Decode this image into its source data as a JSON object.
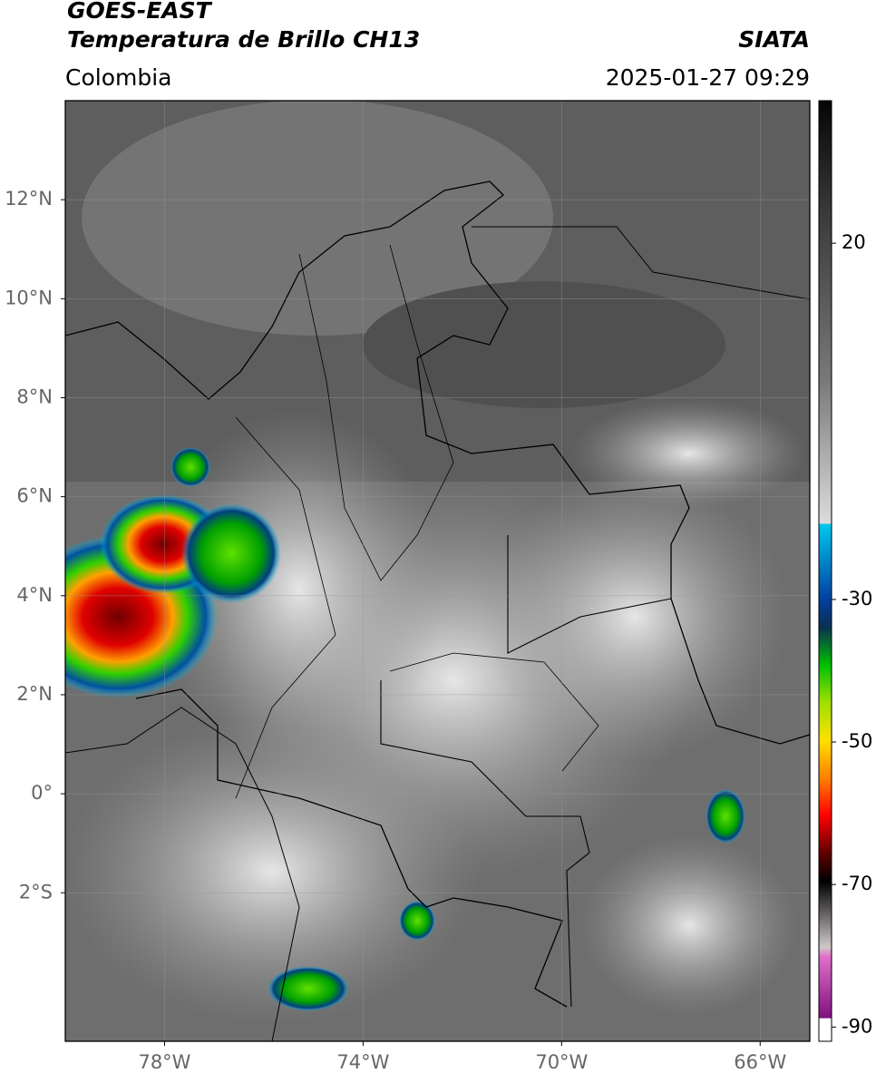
{
  "header": {
    "title": "GOES-EAST",
    "subtitle": "Temperatura de Brillo CH13",
    "region": "Colombia",
    "source": "SIATA",
    "timestamp": "2025-01-27 09:29"
  },
  "map": {
    "xlim": [
      -80,
      -65
    ],
    "ylim": [
      -5,
      14
    ],
    "xticks": [
      {
        "value": -78,
        "label": "78°W"
      },
      {
        "value": -74,
        "label": "74°W"
      },
      {
        "value": -70,
        "label": "70°W"
      },
      {
        "value": -66,
        "label": "66°W"
      }
    ],
    "yticks": [
      {
        "value": 12,
        "label": "12°N"
      },
      {
        "value": 10,
        "label": "10°N"
      },
      {
        "value": 8,
        "label": "8°N"
      },
      {
        "value": 6,
        "label": "6°N"
      },
      {
        "value": 4,
        "label": "4°N"
      },
      {
        "value": 2,
        "label": "2°N"
      },
      {
        "value": 0,
        "label": "0°"
      },
      {
        "value": -2,
        "label": "2°S"
      }
    ]
  },
  "colorbar": {
    "ylim": [
      -92,
      40
    ],
    "yticks": [
      20,
      -30,
      -50,
      -70,
      -90
    ]
  }
}
